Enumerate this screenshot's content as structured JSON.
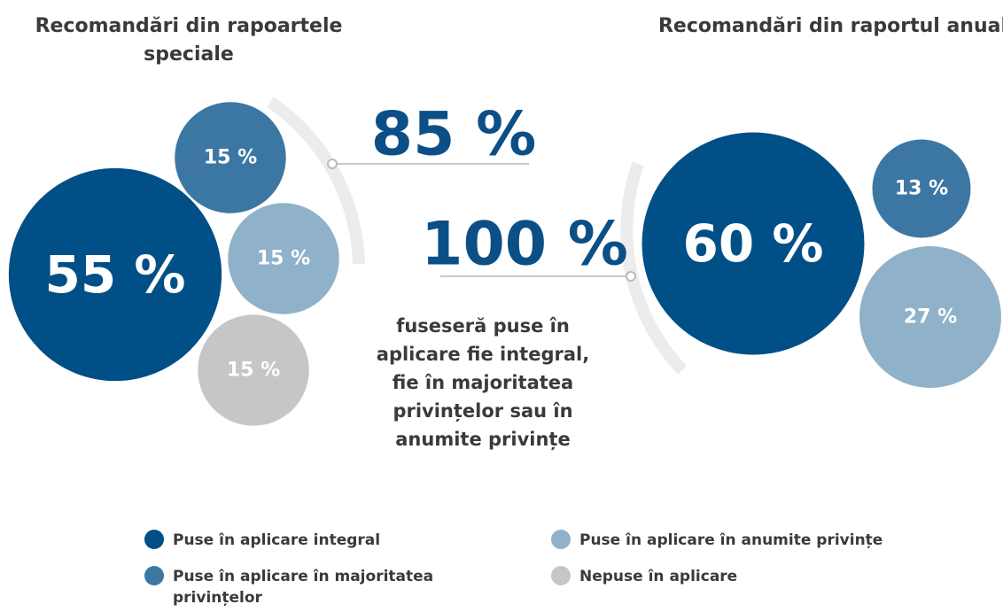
{
  "chart_data": [
    {
      "type": "bubble",
      "title": "Recomandări din rapoartele speciale",
      "categories": [
        "Puse în aplicare integral",
        "Puse în aplicare în majoritatea privințelor",
        "Puse în aplicare în anumite privințe",
        "Nepuse în aplicare"
      ],
      "values": [
        55,
        15,
        15,
        15
      ],
      "value_labels": [
        "55 %",
        "15 %",
        "15 %",
        "15 %"
      ],
      "colors": [
        "#004f86",
        "#3c77a4",
        "#8fb1ca",
        "#c6c6c8"
      ]
    },
    {
      "type": "bubble",
      "title": "Recomandări din raportul anual",
      "categories": [
        "Puse în aplicare integral",
        "Puse în aplicare în majoritatea privințelor",
        "Puse în aplicare în anumite privințe"
      ],
      "values": [
        60,
        13,
        27
      ],
      "value_labels": [
        "60 %",
        "13 %",
        "27 %"
      ],
      "colors": [
        "#004f86",
        "#3c77a4",
        "#8fb1ca"
      ]
    }
  ],
  "callouts": [
    "85 %",
    "100 %"
  ],
  "caption": [
    "fuseseră puse în",
    "aplicare fie integral,",
    "fie în majoritatea",
    "privințelor sau în",
    "anumite privințe"
  ]
}
